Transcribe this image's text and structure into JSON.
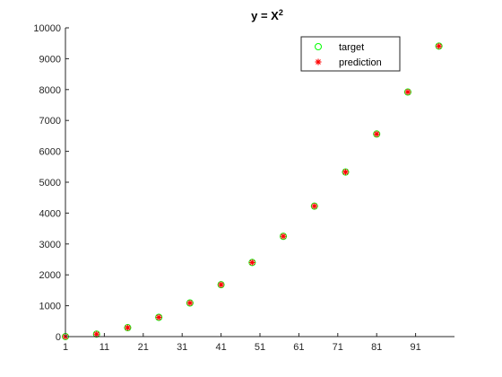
{
  "chart_data": {
    "type": "scatter",
    "title": {
      "base": "y = X",
      "superscript": "2"
    },
    "xlabel": "",
    "ylabel": "",
    "xlim": [
      1,
      101
    ],
    "ylim": [
      0,
      10000
    ],
    "xticks": [
      1,
      11,
      21,
      31,
      41,
      51,
      61,
      71,
      81,
      91
    ],
    "xtick_labels": [
      "1",
      "11",
      "21",
      "31",
      "41",
      "51",
      "61",
      "71",
      "81",
      "91"
    ],
    "yticks": [
      0,
      1000,
      2000,
      3000,
      4000,
      5000,
      6000,
      7000,
      8000,
      9000,
      10000
    ],
    "ytick_labels": [
      "0",
      "1000",
      "2000",
      "3000",
      "4000",
      "5000",
      "6000",
      "7000",
      "8000",
      "9000",
      "10000"
    ],
    "grid": false,
    "legend_position": "top-right",
    "series": [
      {
        "name": "target",
        "marker": "circle",
        "color": "#00ff00",
        "x": [
          1,
          9,
          17,
          25,
          33,
          41,
          49,
          57,
          65,
          73,
          81,
          89,
          97
        ],
        "y": [
          1,
          81,
          289,
          625,
          1089,
          1681,
          2401,
          3249,
          4225,
          5329,
          6561,
          7921,
          9409
        ]
      },
      {
        "name": "prediction",
        "marker": "asterisk",
        "color": "#ff0000",
        "x": [
          1,
          9,
          17,
          25,
          33,
          41,
          49,
          57,
          65,
          73,
          81,
          89,
          97
        ],
        "y": [
          1,
          81,
          289,
          625,
          1089,
          1681,
          2401,
          3249,
          4225,
          5329,
          6561,
          7921,
          9409
        ]
      }
    ]
  }
}
